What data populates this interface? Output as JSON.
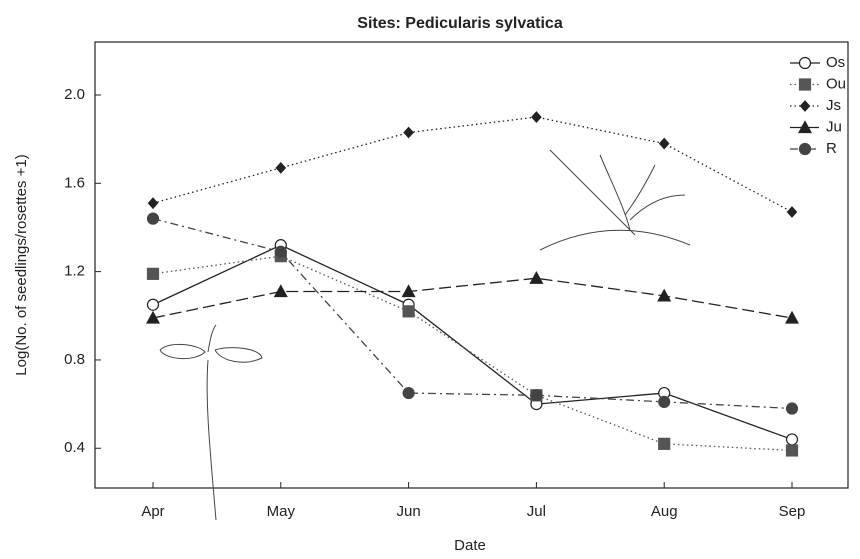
{
  "chart_data": {
    "type": "line",
    "title": "Sites: Pedicularis sylvatica",
    "x_label": "Date",
    "y_label": "Log(No. of seedlings/rosettes +1)",
    "categories": [
      "Apr",
      "May",
      "Jun",
      "Jul",
      "Aug",
      "Sep"
    ],
    "ylim": [
      0.22,
      2.24
    ],
    "yticks": [
      0.4,
      0.8,
      1.2,
      1.6,
      {
        "value": 2,
        "label": "2.0"
      }
    ],
    "legend": "top-right",
    "series": [
      {
        "name": "Os",
        "color": "#222222",
        "marker": "open-circle",
        "line_style": "solid",
        "values": [
          1.05,
          1.32,
          1.05,
          0.6,
          0.65,
          0.44
        ]
      },
      {
        "name": "Ou",
        "color": "#555555",
        "marker": "square",
        "line_style": "dotted",
        "values": [
          1.19,
          1.27,
          1.02,
          0.64,
          0.42,
          0.39
        ]
      },
      {
        "name": "Js",
        "color": "#222222",
        "marker": "diamond",
        "line_style": "dotted",
        "values": [
          1.51,
          1.67,
          1.83,
          1.9,
          1.78,
          1.47
        ]
      },
      {
        "name": "Ju",
        "color": "#222222",
        "marker": "triangle",
        "line_style": "dashed",
        "values": [
          0.99,
          1.11,
          1.11,
          1.17,
          1.09,
          0.99
        ]
      },
      {
        "name": "R",
        "color": "#444444",
        "marker": "circle",
        "line_style": "dash-dot",
        "values": [
          1.44,
          1.29,
          0.65,
          0.64,
          0.61,
          0.58
        ]
      }
    ]
  }
}
